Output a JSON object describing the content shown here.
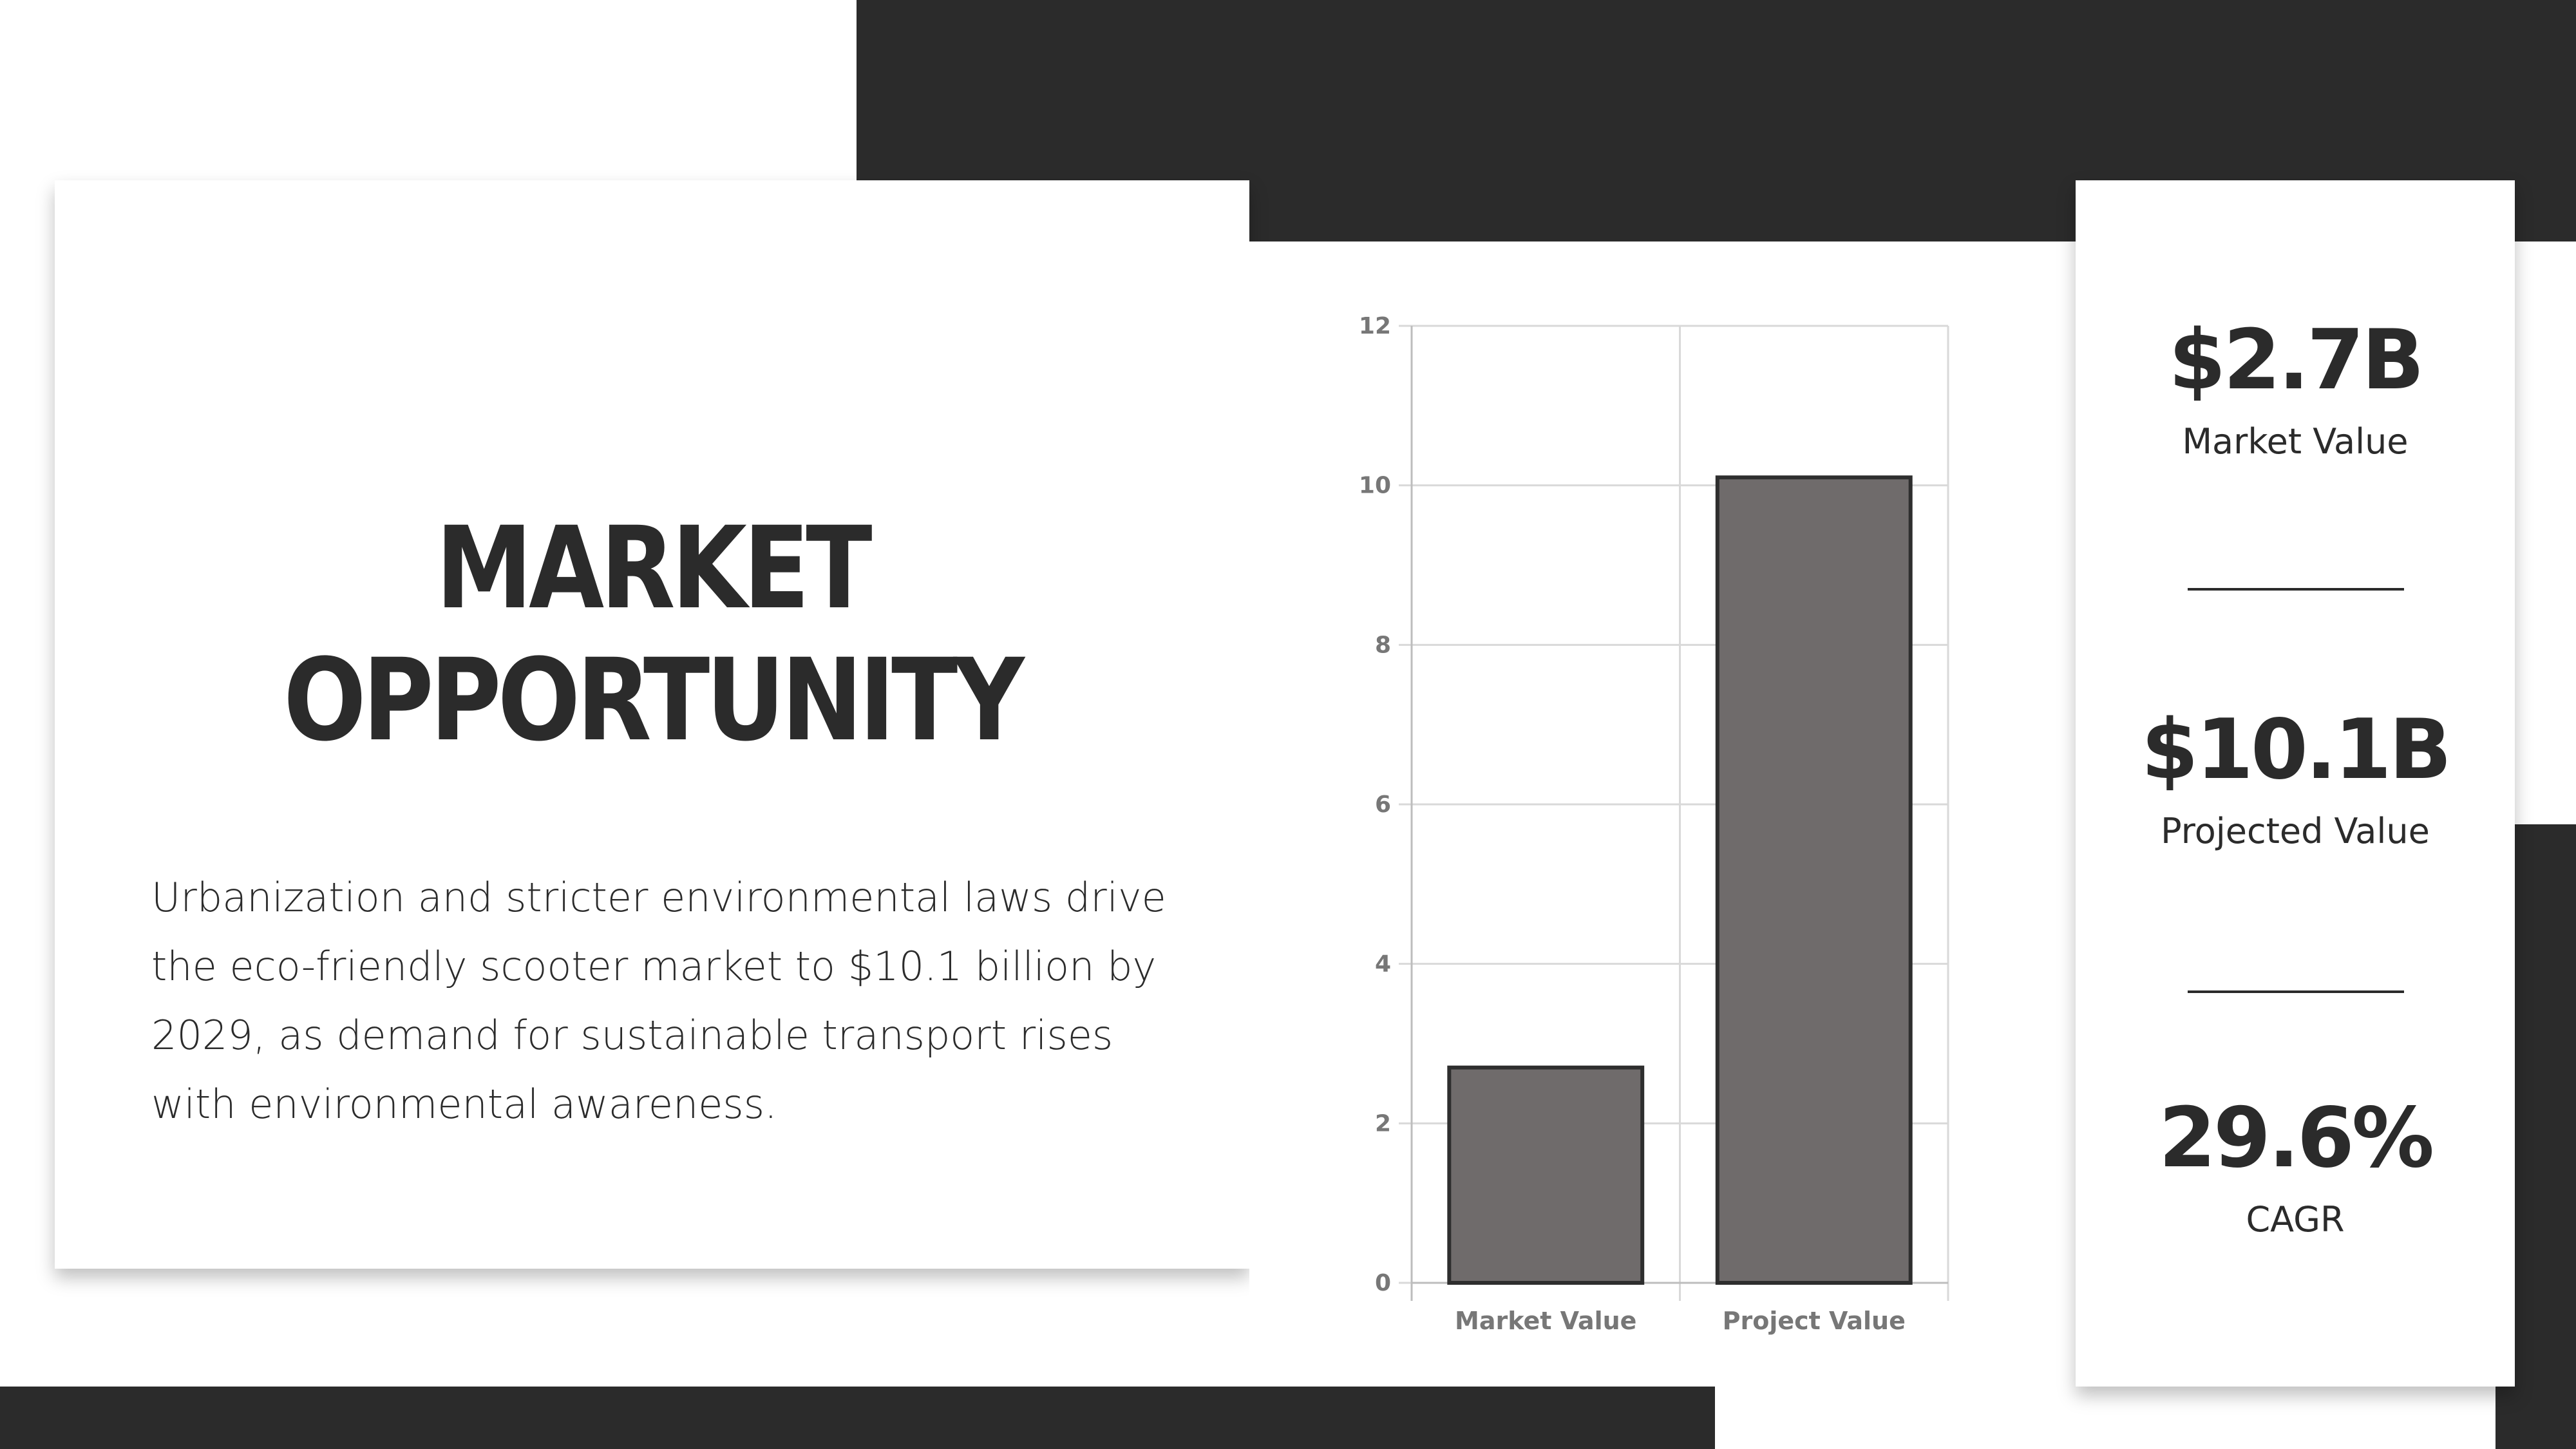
{
  "title": "MARKET OPPORTUNITY",
  "description": "Urbanization and stricter environmental laws drive the eco-friendly scooter market to $10.1 billion by 2029, as demand for sustainable transport rises with environmental awareness.",
  "stats": [
    {
      "value": "$2.7B",
      "label": "Market Value"
    },
    {
      "value": "$10.1B",
      "label": "Projected Value"
    },
    {
      "value": "29.6%",
      "label": "CAGR"
    }
  ],
  "colors": {
    "dark": "#2b2b2b",
    "bar_fill": "#6f6b6b",
    "bar_stroke": "#2e2e2e",
    "grid": "#d9d9d9",
    "tick_text": "#777777"
  },
  "chart_data": {
    "type": "bar",
    "categories": [
      "Market Value",
      "Project Value"
    ],
    "values": [
      2.7,
      10.1
    ],
    "title": "",
    "xlabel": "",
    "ylabel": "",
    "ylim": [
      0,
      12
    ],
    "yticks": [
      0,
      2,
      4,
      6,
      8,
      10,
      12
    ],
    "grid": true,
    "legend": "none"
  }
}
